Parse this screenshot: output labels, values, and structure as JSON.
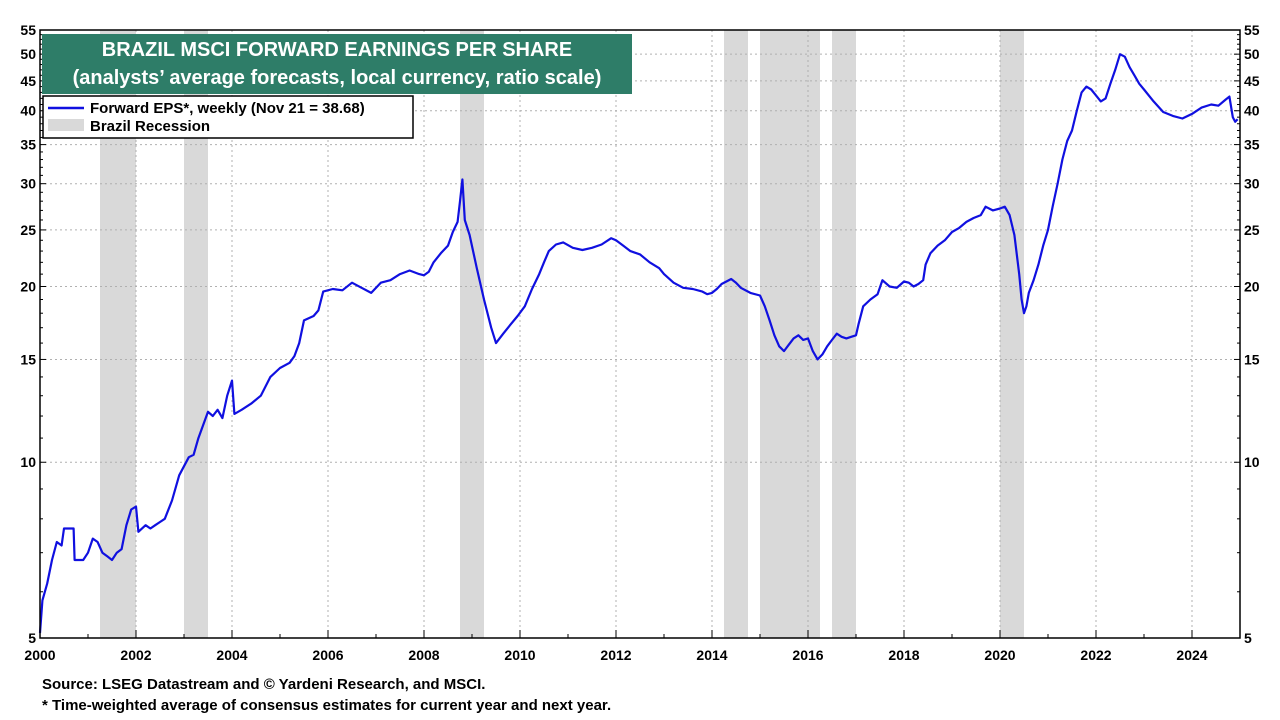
{
  "chart_data": {
    "type": "line",
    "title": "BRAZIL MSCI FORWARD EARNINGS PER SHARE",
    "subtitle": "(analysts’ average forecasts, local currency, ratio scale)",
    "y_scale": "log",
    "ylim": [
      5,
      55
    ],
    "xlim": [
      2000.0,
      2025.0
    ],
    "y_ticks": [
      5,
      10,
      15,
      20,
      25,
      30,
      35,
      40,
      45,
      50,
      55
    ],
    "x_ticks": [
      2000,
      2002,
      2004,
      2006,
      2008,
      2010,
      2012,
      2014,
      2016,
      2018,
      2020,
      2022,
      2024
    ],
    "grid": true,
    "legend_position": "top-left",
    "series": [
      {
        "name": "Forward EPS*, weekly (Nov 21 = 38.68)",
        "color": "#1010e0",
        "points": [
          [
            2000.0,
            5.1
          ],
          [
            2000.05,
            5.8
          ],
          [
            2000.15,
            6.2
          ],
          [
            2000.25,
            6.8
          ],
          [
            2000.35,
            7.3
          ],
          [
            2000.45,
            7.2
          ],
          [
            2000.5,
            7.7
          ],
          [
            2000.7,
            7.7
          ],
          [
            2000.72,
            6.8
          ],
          [
            2000.9,
            6.8
          ],
          [
            2001.0,
            7.0
          ],
          [
            2001.1,
            7.4
          ],
          [
            2001.2,
            7.3
          ],
          [
            2001.3,
            7.0
          ],
          [
            2001.4,
            6.9
          ],
          [
            2001.5,
            6.8
          ],
          [
            2001.6,
            7.0
          ],
          [
            2001.7,
            7.1
          ],
          [
            2001.8,
            7.8
          ],
          [
            2001.9,
            8.3
          ],
          [
            2002.0,
            8.4
          ],
          [
            2002.05,
            7.6
          ],
          [
            2002.2,
            7.8
          ],
          [
            2002.3,
            7.7
          ],
          [
            2002.4,
            7.8
          ],
          [
            2002.5,
            7.9
          ],
          [
            2002.6,
            8.0
          ],
          [
            2002.75,
            8.6
          ],
          [
            2002.9,
            9.5
          ],
          [
            2003.1,
            10.2
          ],
          [
            2003.2,
            10.3
          ],
          [
            2003.3,
            11.0
          ],
          [
            2003.5,
            12.2
          ],
          [
            2003.6,
            12.0
          ],
          [
            2003.7,
            12.3
          ],
          [
            2003.8,
            11.9
          ],
          [
            2003.9,
            13.0
          ],
          [
            2004.0,
            13.8
          ],
          [
            2004.05,
            12.1
          ],
          [
            2004.2,
            12.3
          ],
          [
            2004.4,
            12.6
          ],
          [
            2004.6,
            13.0
          ],
          [
            2004.8,
            14.0
          ],
          [
            2005.0,
            14.5
          ],
          [
            2005.2,
            14.8
          ],
          [
            2005.3,
            15.2
          ],
          [
            2005.4,
            16.0
          ],
          [
            2005.5,
            17.5
          ],
          [
            2005.7,
            17.8
          ],
          [
            2005.8,
            18.2
          ],
          [
            2005.9,
            19.6
          ],
          [
            2006.1,
            19.8
          ],
          [
            2006.3,
            19.7
          ],
          [
            2006.5,
            20.3
          ],
          [
            2006.7,
            19.9
          ],
          [
            2006.9,
            19.5
          ],
          [
            2007.1,
            20.3
          ],
          [
            2007.3,
            20.5
          ],
          [
            2007.5,
            21.0
          ],
          [
            2007.7,
            21.3
          ],
          [
            2007.9,
            21.0
          ],
          [
            2008.0,
            20.9
          ],
          [
            2008.1,
            21.2
          ],
          [
            2008.2,
            22.0
          ],
          [
            2008.35,
            22.8
          ],
          [
            2008.5,
            23.5
          ],
          [
            2008.6,
            24.8
          ],
          [
            2008.7,
            25.8
          ],
          [
            2008.75,
            28.0
          ],
          [
            2008.8,
            30.5
          ],
          [
            2008.85,
            26.0
          ],
          [
            2008.95,
            24.5
          ],
          [
            2009.1,
            21.5
          ],
          [
            2009.25,
            19.0
          ],
          [
            2009.4,
            17.0
          ],
          [
            2009.5,
            16.0
          ],
          [
            2009.65,
            16.6
          ],
          [
            2009.8,
            17.2
          ],
          [
            2009.95,
            17.8
          ],
          [
            2010.1,
            18.5
          ],
          [
            2010.25,
            19.8
          ],
          [
            2010.4,
            21.0
          ],
          [
            2010.5,
            22.0
          ],
          [
            2010.6,
            23.0
          ],
          [
            2010.75,
            23.6
          ],
          [
            2010.9,
            23.8
          ],
          [
            2011.1,
            23.3
          ],
          [
            2011.3,
            23.1
          ],
          [
            2011.5,
            23.3
          ],
          [
            2011.7,
            23.6
          ],
          [
            2011.9,
            24.2
          ],
          [
            2012.0,
            24.0
          ],
          [
            2012.15,
            23.5
          ],
          [
            2012.3,
            23.0
          ],
          [
            2012.5,
            22.7
          ],
          [
            2012.7,
            22.0
          ],
          [
            2012.9,
            21.5
          ],
          [
            2013.0,
            21.0
          ],
          [
            2013.2,
            20.3
          ],
          [
            2013.4,
            19.9
          ],
          [
            2013.6,
            19.8
          ],
          [
            2013.8,
            19.6
          ],
          [
            2013.9,
            19.4
          ],
          [
            2014.0,
            19.5
          ],
          [
            2014.1,
            19.8
          ],
          [
            2014.2,
            20.2
          ],
          [
            2014.3,
            20.4
          ],
          [
            2014.4,
            20.6
          ],
          [
            2014.5,
            20.3
          ],
          [
            2014.6,
            19.9
          ],
          [
            2014.8,
            19.5
          ],
          [
            2015.0,
            19.3
          ],
          [
            2015.1,
            18.5
          ],
          [
            2015.2,
            17.5
          ],
          [
            2015.3,
            16.5
          ],
          [
            2015.4,
            15.8
          ],
          [
            2015.5,
            15.5
          ],
          [
            2015.6,
            15.9
          ],
          [
            2015.7,
            16.3
          ],
          [
            2015.8,
            16.5
          ],
          [
            2015.9,
            16.2
          ],
          [
            2016.0,
            16.3
          ],
          [
            2016.1,
            15.5
          ],
          [
            2016.2,
            15.0
          ],
          [
            2016.3,
            15.3
          ],
          [
            2016.4,
            15.8
          ],
          [
            2016.5,
            16.2
          ],
          [
            2016.6,
            16.6
          ],
          [
            2016.7,
            16.4
          ],
          [
            2016.8,
            16.3
          ],
          [
            2016.9,
            16.4
          ],
          [
            2017.0,
            16.5
          ],
          [
            2017.05,
            17.2
          ],
          [
            2017.15,
            18.5
          ],
          [
            2017.3,
            19.0
          ],
          [
            2017.45,
            19.4
          ],
          [
            2017.55,
            20.5
          ],
          [
            2017.7,
            20.0
          ],
          [
            2017.85,
            19.9
          ],
          [
            2018.0,
            20.4
          ],
          [
            2018.1,
            20.3
          ],
          [
            2018.2,
            20.0
          ],
          [
            2018.3,
            20.2
          ],
          [
            2018.4,
            20.5
          ],
          [
            2018.45,
            21.8
          ],
          [
            2018.55,
            22.8
          ],
          [
            2018.7,
            23.5
          ],
          [
            2018.85,
            24.0
          ],
          [
            2019.0,
            24.8
          ],
          [
            2019.15,
            25.2
          ],
          [
            2019.3,
            25.8
          ],
          [
            2019.45,
            26.2
          ],
          [
            2019.6,
            26.5
          ],
          [
            2019.7,
            27.4
          ],
          [
            2019.85,
            27.0
          ],
          [
            2020.0,
            27.2
          ],
          [
            2020.1,
            27.4
          ],
          [
            2020.2,
            26.5
          ],
          [
            2020.3,
            24.5
          ],
          [
            2020.4,
            21.0
          ],
          [
            2020.45,
            19.0
          ],
          [
            2020.5,
            18.0
          ],
          [
            2020.55,
            18.5
          ],
          [
            2020.6,
            19.5
          ],
          [
            2020.7,
            20.5
          ],
          [
            2020.8,
            21.8
          ],
          [
            2020.9,
            23.5
          ],
          [
            2021.0,
            25.0
          ],
          [
            2021.1,
            27.5
          ],
          [
            2021.2,
            30.0
          ],
          [
            2021.3,
            33.0
          ],
          [
            2021.4,
            35.5
          ],
          [
            2021.5,
            37.0
          ],
          [
            2021.6,
            40.0
          ],
          [
            2021.7,
            43.0
          ],
          [
            2021.8,
            44.0
          ],
          [
            2021.9,
            43.5
          ],
          [
            2022.0,
            42.5
          ],
          [
            2022.1,
            41.5
          ],
          [
            2022.2,
            42.0
          ],
          [
            2022.3,
            44.5
          ],
          [
            2022.4,
            47.0
          ],
          [
            2022.5,
            50.0
          ],
          [
            2022.6,
            49.5
          ],
          [
            2022.7,
            47.5
          ],
          [
            2022.8,
            46.0
          ],
          [
            2022.9,
            44.5
          ],
          [
            2023.0,
            43.5
          ],
          [
            2023.2,
            41.5
          ],
          [
            2023.4,
            39.8
          ],
          [
            2023.6,
            39.2
          ],
          [
            2023.8,
            38.8
          ],
          [
            2024.0,
            39.5
          ],
          [
            2024.2,
            40.5
          ],
          [
            2024.4,
            41.0
          ],
          [
            2024.55,
            40.8
          ],
          [
            2024.7,
            41.8
          ],
          [
            2024.78,
            42.3
          ],
          [
            2024.85,
            39.0
          ],
          [
            2024.9,
            38.3
          ],
          [
            2024.95,
            38.68
          ]
        ]
      },
      {
        "name": "Brazil Recession",
        "color": "#d9d9d9",
        "ranges": [
          [
            2001.25,
            2002.0
          ],
          [
            2003.0,
            2003.5
          ],
          [
            2008.75,
            2009.25
          ],
          [
            2014.25,
            2014.75
          ],
          [
            2015.0,
            2016.25
          ],
          [
            2016.5,
            2017.0
          ],
          [
            2020.0,
            2020.5
          ]
        ]
      }
    ]
  },
  "footer": {
    "source": "Source: LSEG Datastream and © Yardeni Research, and MSCI.",
    "note": "* Time-weighted average of consensus estimates for current year and next year."
  }
}
